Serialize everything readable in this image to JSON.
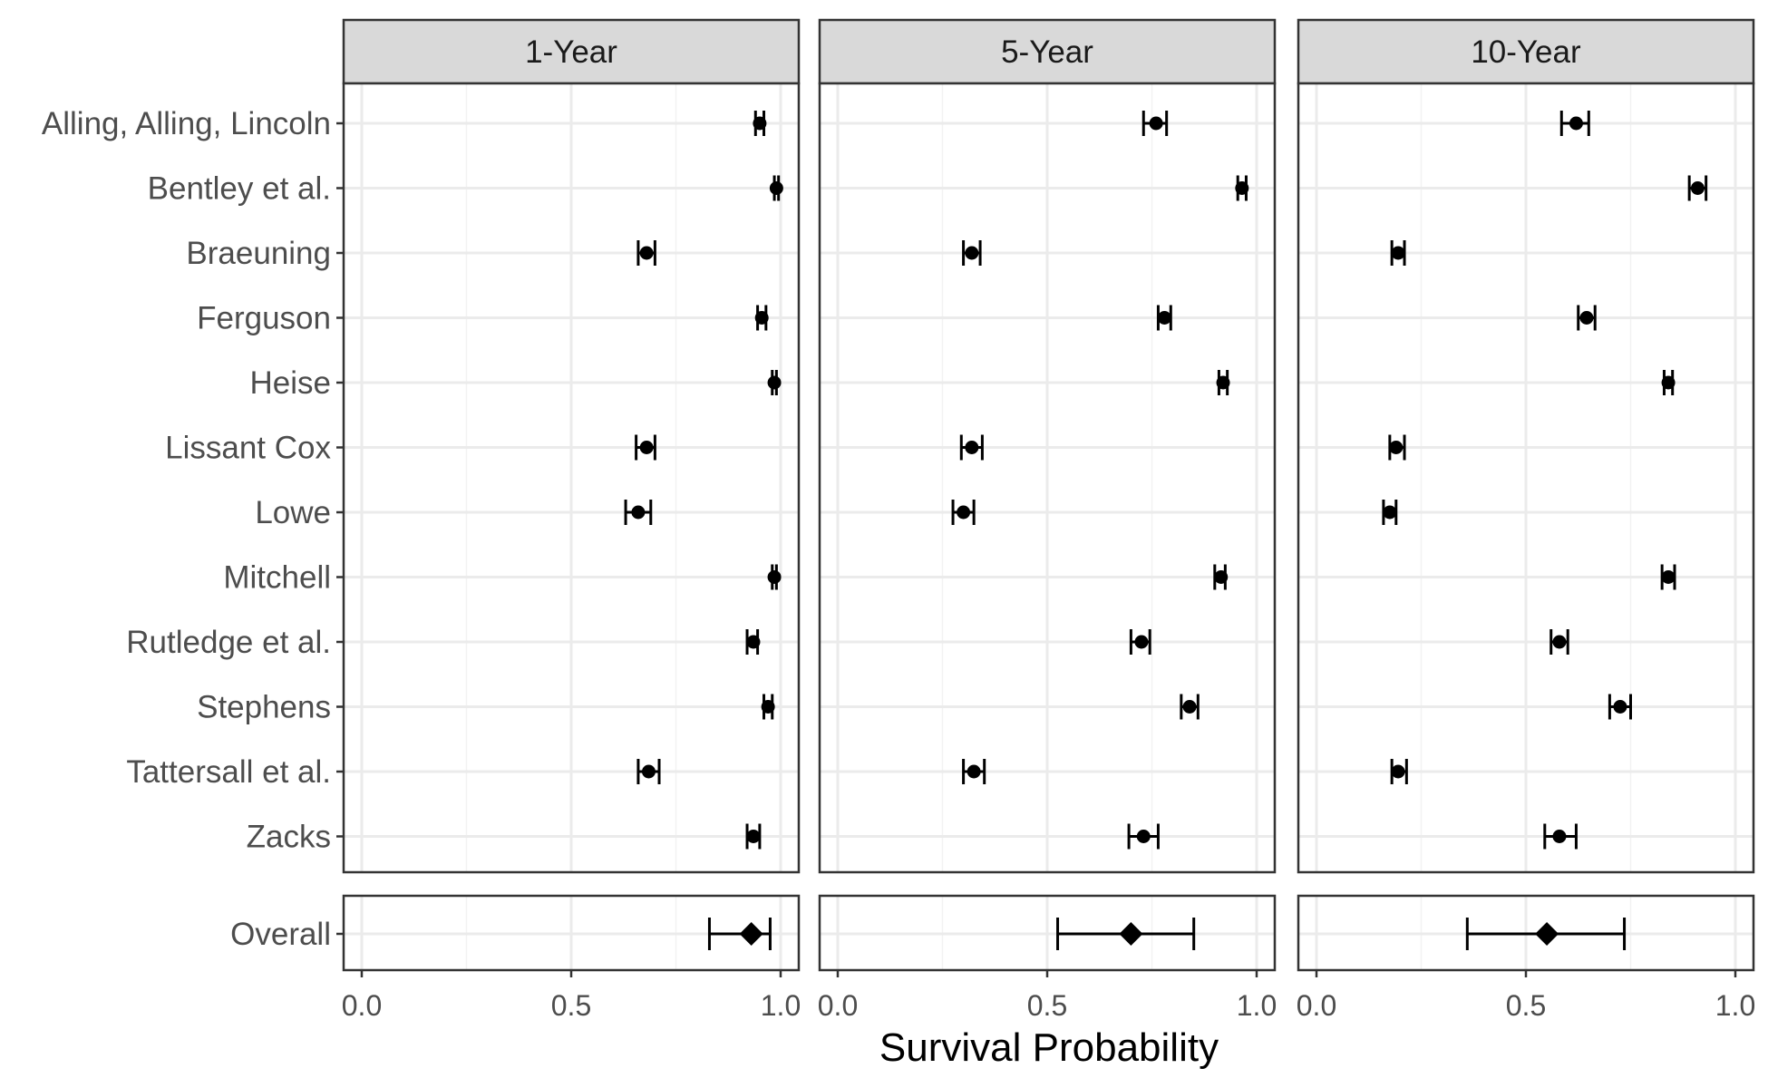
{
  "chart_data": {
    "type": "forest",
    "xlabel": "Survival Probability",
    "xlim": [
      0,
      1
    ],
    "xticks": [
      "0.0",
      "0.5",
      "1.0"
    ],
    "grid": true,
    "panels": [
      "1-Year",
      "5-Year",
      "10-Year"
    ],
    "studies": [
      "Alling, Alling, Lincoln",
      "Bentley et al.",
      "Braeuning",
      "Ferguson",
      "Heise",
      "Lissant Cox",
      "Lowe",
      "Mitchell",
      "Rutledge et al.",
      "Stephens",
      "Tattersall et al.",
      "Zacks"
    ],
    "summary_label": "Overall",
    "estimates": {
      "1-Year": [
        {
          "est": 0.95,
          "lo": 0.94,
          "hi": 0.96
        },
        {
          "est": 0.99,
          "lo": 0.985,
          "hi": 0.995
        },
        {
          "est": 0.68,
          "lo": 0.66,
          "hi": 0.7
        },
        {
          "est": 0.955,
          "lo": 0.945,
          "hi": 0.965
        },
        {
          "est": 0.985,
          "lo": 0.98,
          "hi": 0.99
        },
        {
          "est": 0.68,
          "lo": 0.655,
          "hi": 0.7
        },
        {
          "est": 0.66,
          "lo": 0.63,
          "hi": 0.69
        },
        {
          "est": 0.985,
          "lo": 0.98,
          "hi": 0.99
        },
        {
          "est": 0.935,
          "lo": 0.92,
          "hi": 0.945
        },
        {
          "est": 0.97,
          "lo": 0.96,
          "hi": 0.98
        },
        {
          "est": 0.685,
          "lo": 0.66,
          "hi": 0.71
        },
        {
          "est": 0.935,
          "lo": 0.92,
          "hi": 0.95
        }
      ],
      "5-Year": [
        {
          "est": 0.76,
          "lo": 0.73,
          "hi": 0.785
        },
        {
          "est": 0.965,
          "lo": 0.955,
          "hi": 0.975
        },
        {
          "est": 0.32,
          "lo": 0.3,
          "hi": 0.34
        },
        {
          "est": 0.78,
          "lo": 0.765,
          "hi": 0.795
        },
        {
          "est": 0.92,
          "lo": 0.91,
          "hi": 0.93
        },
        {
          "est": 0.32,
          "lo": 0.295,
          "hi": 0.345
        },
        {
          "est": 0.3,
          "lo": 0.275,
          "hi": 0.325
        },
        {
          "est": 0.915,
          "lo": 0.9,
          "hi": 0.925
        },
        {
          "est": 0.725,
          "lo": 0.7,
          "hi": 0.745
        },
        {
          "est": 0.84,
          "lo": 0.82,
          "hi": 0.86
        },
        {
          "est": 0.325,
          "lo": 0.3,
          "hi": 0.35
        },
        {
          "est": 0.73,
          "lo": 0.695,
          "hi": 0.765
        }
      ],
      "10-Year": [
        {
          "est": 0.62,
          "lo": 0.585,
          "hi": 0.65
        },
        {
          "est": 0.91,
          "lo": 0.89,
          "hi": 0.93
        },
        {
          "est": 0.195,
          "lo": 0.18,
          "hi": 0.21
        },
        {
          "est": 0.645,
          "lo": 0.625,
          "hi": 0.665
        },
        {
          "est": 0.84,
          "lo": 0.83,
          "hi": 0.85
        },
        {
          "est": 0.19,
          "lo": 0.175,
          "hi": 0.21
        },
        {
          "est": 0.175,
          "lo": 0.16,
          "hi": 0.19
        },
        {
          "est": 0.84,
          "lo": 0.825,
          "hi": 0.855
        },
        {
          "est": 0.58,
          "lo": 0.56,
          "hi": 0.6
        },
        {
          "est": 0.725,
          "lo": 0.7,
          "hi": 0.75
        },
        {
          "est": 0.195,
          "lo": 0.18,
          "hi": 0.215
        },
        {
          "est": 0.58,
          "lo": 0.545,
          "hi": 0.62
        }
      ]
    },
    "overall": {
      "1-Year": {
        "est": 0.93,
        "lo": 0.83,
        "hi": 0.975
      },
      "5-Year": {
        "est": 0.7,
        "lo": 0.525,
        "hi": 0.85
      },
      "10-Year": {
        "est": 0.55,
        "lo": 0.36,
        "hi": 0.735
      }
    },
    "colors": {
      "strip_fill": "#d9d9d9",
      "panel_border": "#333333",
      "grid_major": "#ebebeb",
      "grid_minor": "#f2f2f2",
      "marker": "#000000"
    }
  }
}
